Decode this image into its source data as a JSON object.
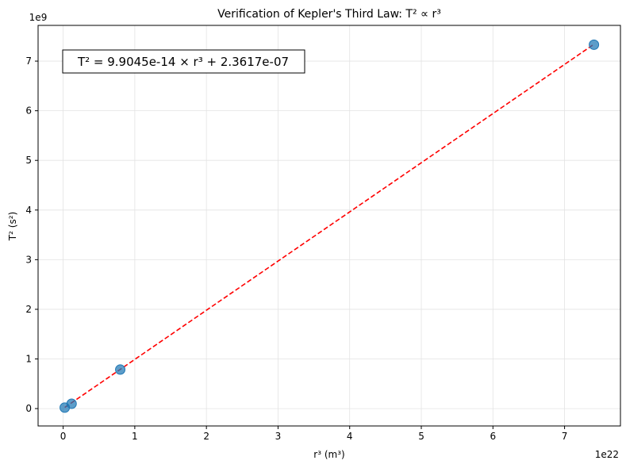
{
  "chart_data": {
    "type": "scatter",
    "title": "Verification of Kepler's Third Law: T² ∝ r³",
    "xlabel": "r³ (m³)",
    "ylabel": "T² (s²)",
    "x_offset_label": "1e22",
    "y_offset_label": "1e9",
    "x_scale": 1e+22,
    "y_scale": 1000000000.0,
    "xlim": [
      -0.35,
      7.78
    ],
    "ylim": [
      -0.35,
      7.72
    ],
    "xticks": [
      0,
      1,
      2,
      3,
      4,
      5,
      6,
      7
    ],
    "yticks": [
      0,
      1,
      2,
      3,
      4,
      5,
      6,
      7
    ],
    "grid": true,
    "points": {
      "x": [
        0.022,
        0.118,
        0.797,
        7.41
      ],
      "y": [
        0.02,
        0.097,
        0.786,
        7.33
      ],
      "color": "#1f77b4"
    },
    "fit_line": {
      "x": [
        0.022,
        7.41
      ],
      "y": [
        0.022,
        7.34
      ],
      "color": "#ff0000",
      "style": "dashed"
    },
    "annotation": "T² = 9.9045e-14 × r³ + 2.3617e-07"
  }
}
